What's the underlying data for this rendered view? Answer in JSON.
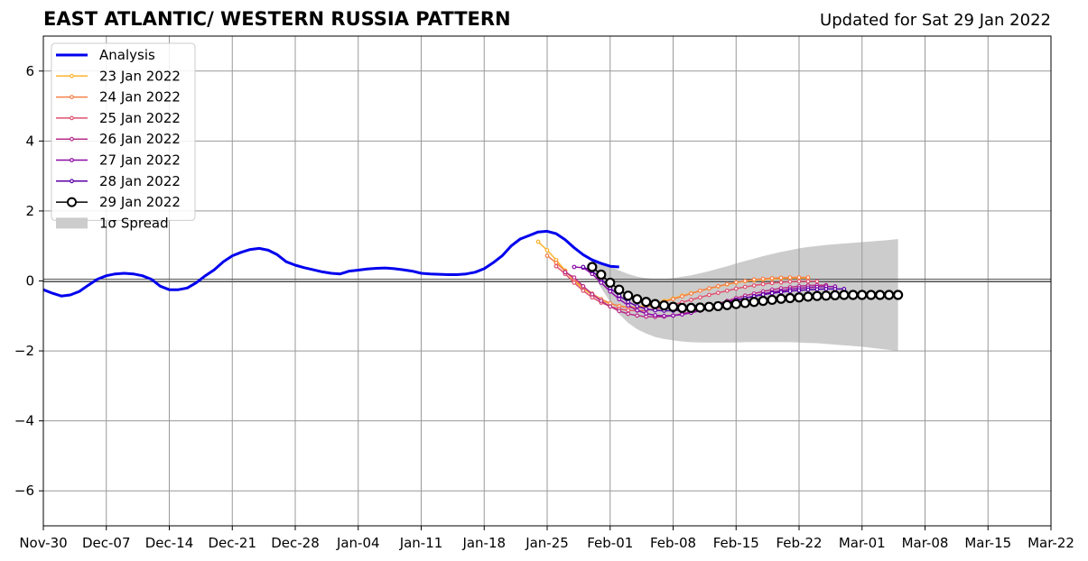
{
  "header": {
    "title": "EAST ATLANTIC/ WESTERN RUSSIA PATTERN",
    "updated": "Updated for Sat 29 Jan 2022"
  },
  "chart_data": {
    "type": "line",
    "title": "EAST ATLANTIC/ WESTERN RUSSIA PATTERN",
    "subtitle": "Updated for Sat 29 Jan 2022",
    "xlabel": "",
    "ylabel": "",
    "x_range": [
      "2021-11-30",
      "2022-03-22"
    ],
    "ylim": [
      -7,
      7
    ],
    "x_tick_labels": [
      "Nov-30",
      "Dec-07",
      "Dec-14",
      "Dec-21",
      "Dec-28",
      "Jan-04",
      "Jan-11",
      "Jan-18",
      "Jan-25",
      "Feb-01",
      "Feb-08",
      "Feb-15",
      "Feb-22",
      "Mar-01",
      "Mar-08",
      "Mar-15",
      "Mar-22"
    ],
    "x_ticks": [
      "2021-11-30",
      "2021-12-07",
      "2021-12-14",
      "2021-12-21",
      "2021-12-28",
      "2022-01-04",
      "2022-01-11",
      "2022-01-18",
      "2022-01-25",
      "2022-02-01",
      "2022-02-08",
      "2022-02-15",
      "2022-02-22",
      "2022-03-01",
      "2022-03-08",
      "2022-03-15",
      "2022-03-22"
    ],
    "y_ticks": [
      -6,
      -4,
      -2,
      0,
      2,
      4,
      6
    ],
    "y_tick_labels": [
      "−6",
      "−4",
      "−2",
      "0",
      "2",
      "4",
      "6"
    ],
    "grid": true,
    "legend_position": "top-left",
    "series": [
      {
        "name": "Analysis",
        "color": "#0000ee",
        "marker": "none",
        "start": "2021-11-30",
        "values": [
          -0.25,
          -0.35,
          -0.43,
          -0.4,
          -0.3,
          -0.12,
          0.05,
          0.15,
          0.2,
          0.22,
          0.2,
          0.15,
          0.05,
          -0.15,
          -0.25,
          -0.25,
          -0.2,
          -0.05,
          0.15,
          0.32,
          0.55,
          0.72,
          0.82,
          0.9,
          0.93,
          0.88,
          0.75,
          0.55,
          0.45,
          0.38,
          0.32,
          0.26,
          0.22,
          0.2,
          0.28,
          0.31,
          0.34,
          0.36,
          0.37,
          0.35,
          0.32,
          0.28,
          0.22,
          0.2,
          0.19,
          0.18,
          0.18,
          0.2,
          0.25,
          0.35,
          0.52,
          0.72,
          1.0,
          1.2,
          1.3,
          1.4,
          1.42,
          1.35,
          1.18,
          0.95,
          0.75,
          0.6,
          0.5,
          0.42,
          0.4
        ]
      },
      {
        "name": "23 Jan 2022",
        "color": "#fdb431",
        "marker": "dot",
        "start": "2022-01-24",
        "values": [
          1.12,
          0.88,
          0.6,
          0.3,
          0.0,
          -0.22,
          -0.4,
          -0.55,
          -0.65,
          -0.72,
          -0.75,
          -0.74,
          -0.7,
          -0.64,
          -0.57,
          -0.5,
          -0.42,
          -0.35,
          -0.28,
          -0.22,
          -0.16,
          -0.1,
          -0.05,
          -0.01,
          0.02,
          0.04,
          0.06,
          0.07,
          0.08,
          0.08,
          0.08
        ]
      },
      {
        "name": "24 Jan 2022",
        "color": "#f48148",
        "marker": "dot",
        "start": "2022-01-25",
        "values": [
          0.72,
          0.52,
          0.28,
          0.05,
          -0.17,
          -0.36,
          -0.52,
          -0.64,
          -0.72,
          -0.76,
          -0.77,
          -0.74,
          -0.68,
          -0.6,
          -0.52,
          -0.44,
          -0.36,
          -0.28,
          -0.21,
          -0.15,
          -0.09,
          -0.04,
          0.0,
          0.04,
          0.06,
          0.08,
          0.09,
          0.1,
          0.1,
          0.1
        ]
      },
      {
        "name": "25 Jan 2022",
        "color": "#de5270",
        "marker": "dot",
        "start": "2022-01-26",
        "values": [
          0.42,
          0.2,
          -0.05,
          -0.28,
          -0.47,
          -0.62,
          -0.73,
          -0.8,
          -0.84,
          -0.85,
          -0.84,
          -0.8,
          -0.75,
          -0.68,
          -0.61,
          -0.54,
          -0.47,
          -0.4,
          -0.34,
          -0.28,
          -0.22,
          -0.17,
          -0.13,
          -0.09,
          -0.06,
          -0.04,
          -0.02,
          -0.01,
          -0.01,
          -0.01
        ]
      },
      {
        "name": "26 Jan 2022",
        "color": "#b82e8a",
        "marker": "dot",
        "start": "2022-01-27",
        "values": [
          0.25,
          0.1,
          -0.15,
          -0.38,
          -0.57,
          -0.73,
          -0.86,
          -0.94,
          -0.99,
          -1.02,
          -1.03,
          -1.02,
          -0.99,
          -0.94,
          -0.88,
          -0.81,
          -0.73,
          -0.65,
          -0.57,
          -0.49,
          -0.42,
          -0.36,
          -0.3,
          -0.25,
          -0.21,
          -0.18,
          -0.15,
          -0.13,
          -0.12,
          -0.12
        ]
      },
      {
        "name": "27 Jan 2022",
        "color": "#8b0aa5",
        "marker": "dot",
        "start": "2022-01-28",
        "values": [
          0.4,
          0.38,
          0.2,
          -0.05,
          -0.3,
          -0.52,
          -0.7,
          -0.84,
          -0.93,
          -0.98,
          -1.0,
          -0.99,
          -0.96,
          -0.91,
          -0.85,
          -0.78,
          -0.71,
          -0.63,
          -0.56,
          -0.49,
          -0.43,
          -0.37,
          -0.32,
          -0.28,
          -0.24,
          -0.21,
          -0.19,
          -0.17,
          -0.16,
          -0.16
        ]
      },
      {
        "name": "28 Jan 2022",
        "color": "#5c01a6",
        "marker": "dot",
        "start": "2022-01-29",
        "values": [
          0.4,
          0.28,
          0.05,
          -0.2,
          -0.42,
          -0.6,
          -0.72,
          -0.8,
          -0.84,
          -0.85,
          -0.85,
          -0.83,
          -0.8,
          -0.76,
          -0.71,
          -0.66,
          -0.6,
          -0.54,
          -0.49,
          -0.44,
          -0.39,
          -0.35,
          -0.32,
          -0.29,
          -0.27,
          -0.25,
          -0.24,
          -0.23,
          -0.23,
          -0.23
        ]
      },
      {
        "name": "29 Jan 2022",
        "color": "#000000",
        "marker": "circle",
        "start": "2022-01-30",
        "values": [
          0.4,
          0.18,
          -0.05,
          -0.25,
          -0.42,
          -0.52,
          -0.6,
          -0.66,
          -0.7,
          -0.74,
          -0.77,
          -0.77,
          -0.76,
          -0.74,
          -0.72,
          -0.69,
          -0.66,
          -0.63,
          -0.6,
          -0.57,
          -0.54,
          -0.51,
          -0.49,
          -0.47,
          -0.45,
          -0.43,
          -0.42,
          -0.41,
          -0.4,
          -0.4,
          -0.4,
          -0.4,
          -0.4,
          -0.4,
          -0.4
        ]
      }
    ],
    "spread": {
      "name": "1σ Spread",
      "color": "#cccccc",
      "start": "2022-01-30",
      "upper": [
        0.65,
        0.55,
        0.42,
        0.3,
        0.2,
        0.12,
        0.08,
        0.06,
        0.06,
        0.08,
        0.12,
        0.16,
        0.22,
        0.28,
        0.35,
        0.42,
        0.5,
        0.57,
        0.64,
        0.71,
        0.77,
        0.83,
        0.88,
        0.93,
        0.97,
        1.0,
        1.03,
        1.05,
        1.07,
        1.09,
        1.11,
        1.13,
        1.15,
        1.17,
        1.2
      ],
      "lower": [
        0.25,
        -0.2,
        -0.6,
        -0.95,
        -1.2,
        -1.38,
        -1.5,
        -1.6,
        -1.66,
        -1.7,
        -1.73,
        -1.75,
        -1.76,
        -1.76,
        -1.76,
        -1.76,
        -1.76,
        -1.75,
        -1.75,
        -1.75,
        -1.75,
        -1.75,
        -1.75,
        -1.76,
        -1.77,
        -1.78,
        -1.8,
        -1.82,
        -1.84,
        -1.86,
        -1.88,
        -1.91,
        -1.94,
        -1.97,
        -2.0
      ]
    }
  }
}
